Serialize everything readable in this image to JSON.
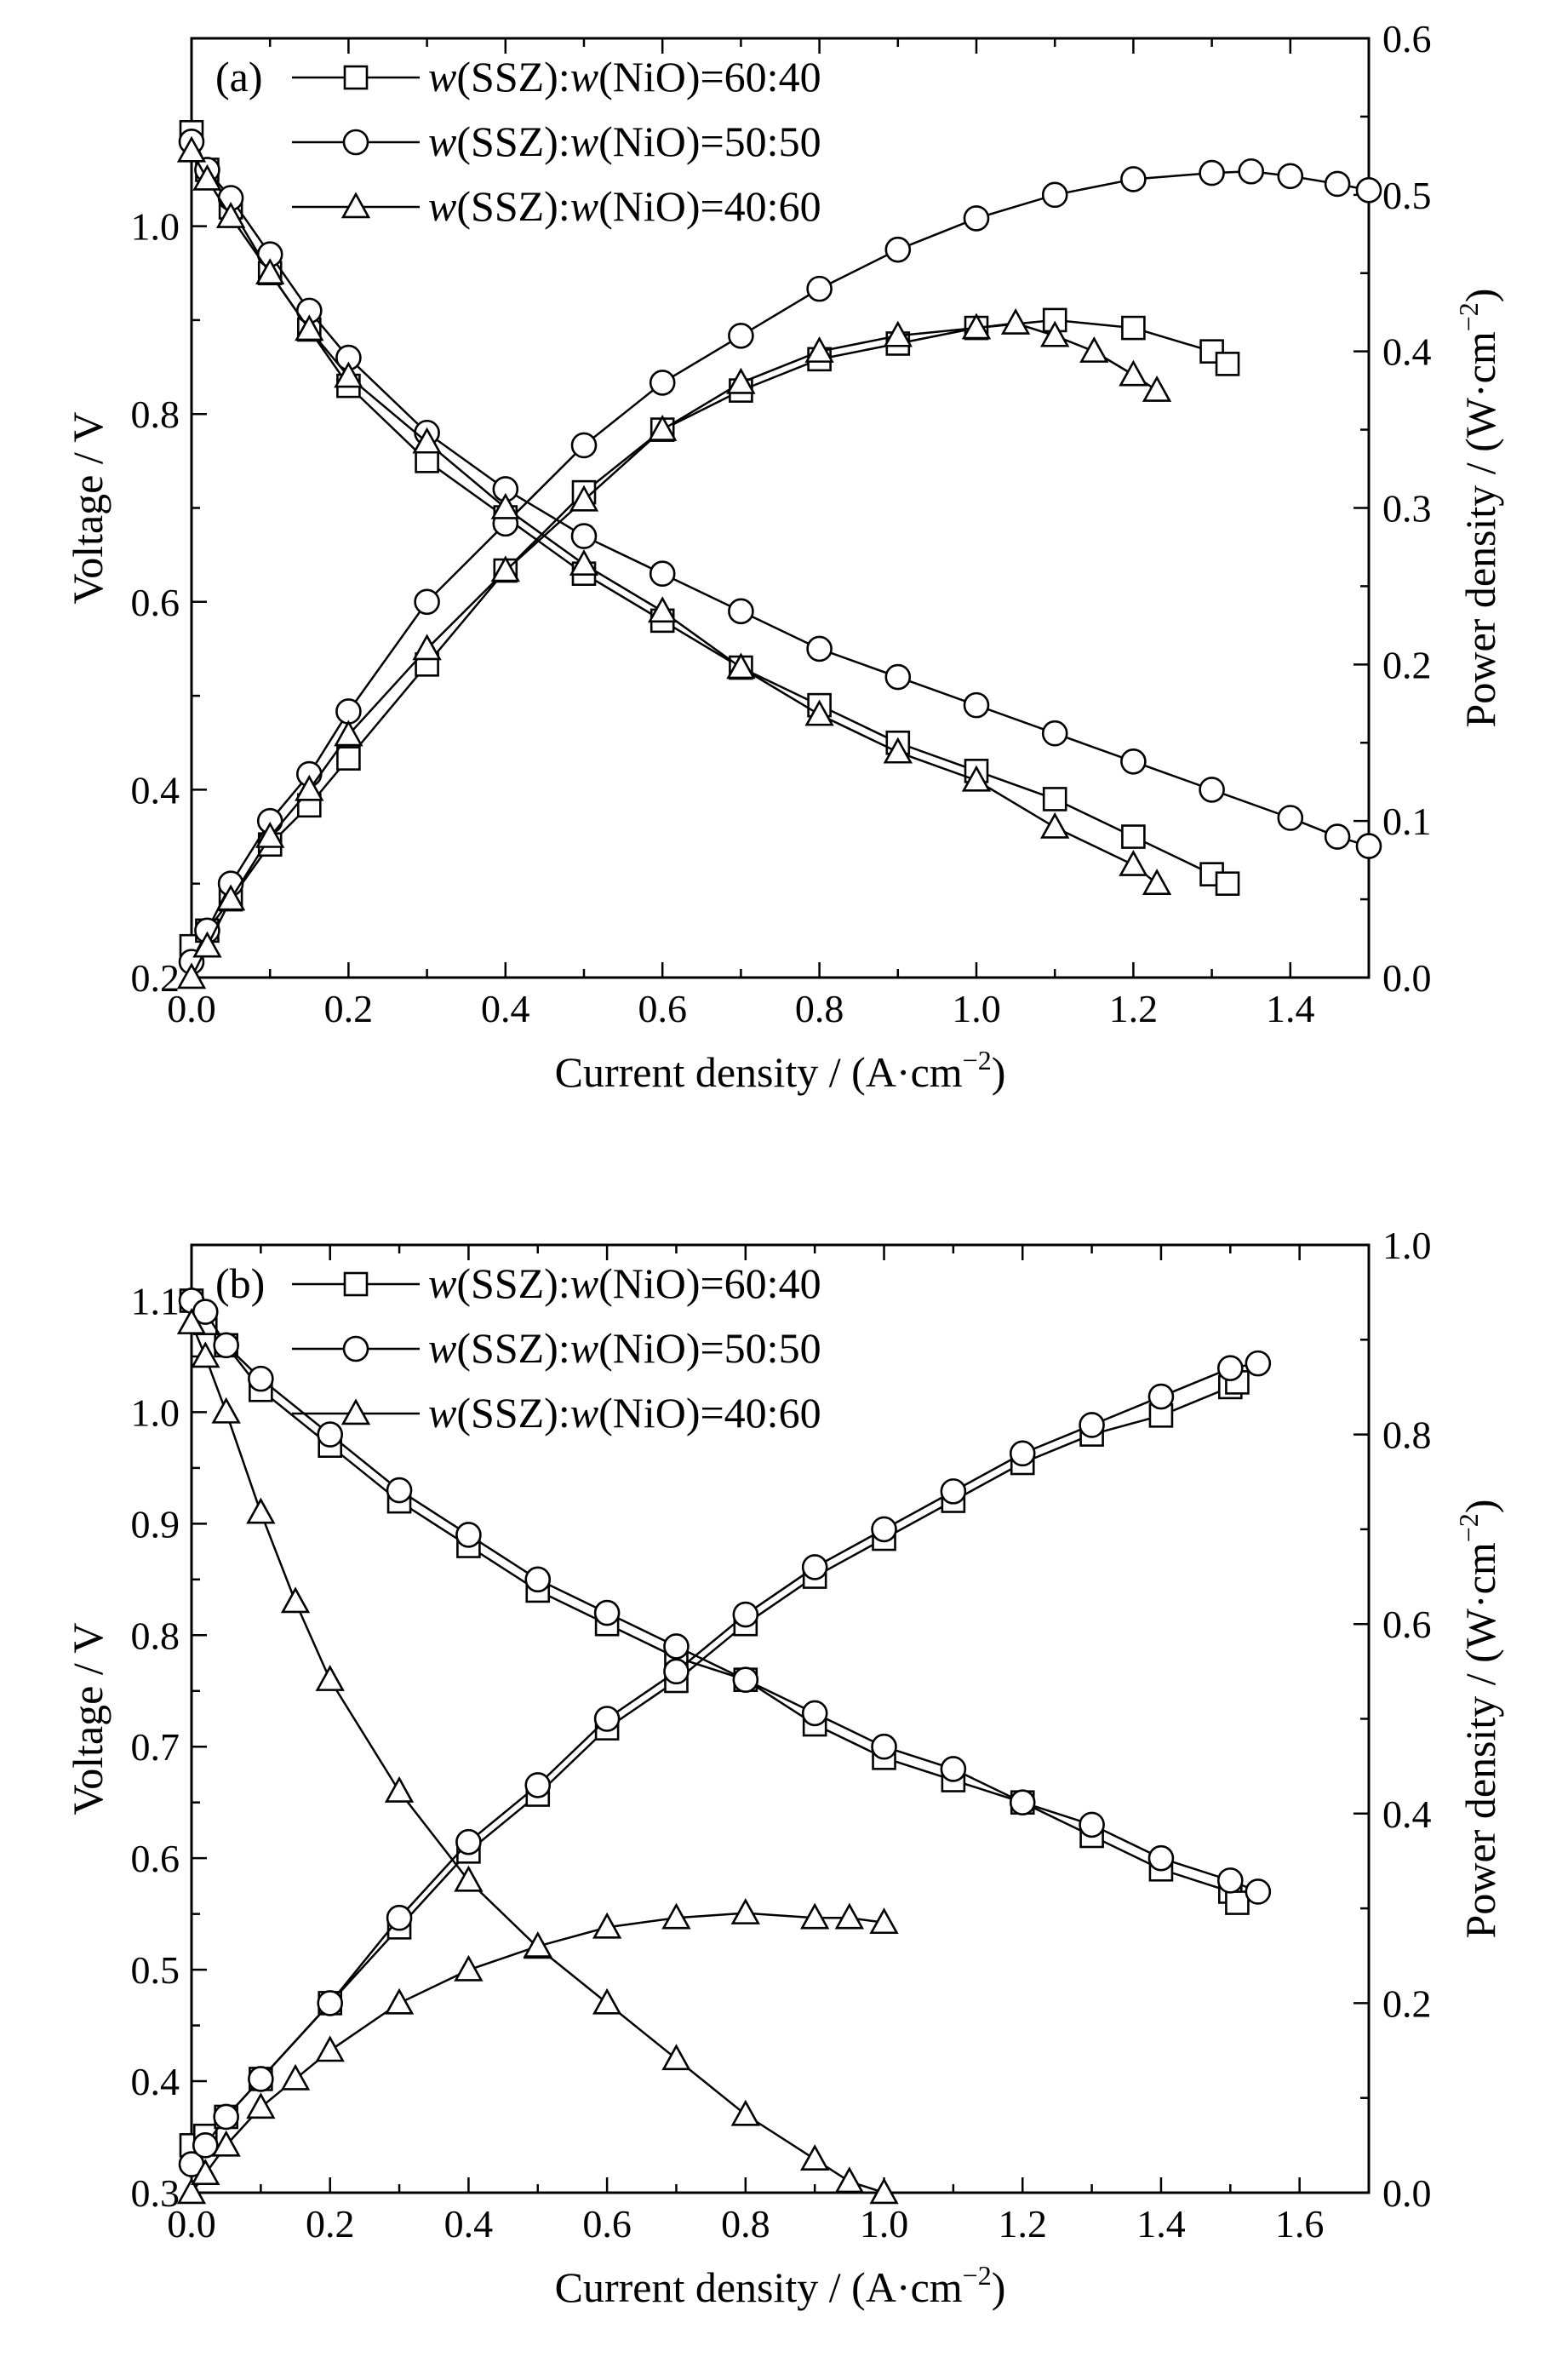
{
  "chart_data": [
    {
      "type": "line",
      "panel_label": "(a)",
      "xlabel": "Current density / (A·cm",
      "xlabel_sup": "−2",
      "xlabel_tail": ")",
      "ylabel_left": "Voltage / V",
      "ylabel_right": "Power density / (W·cm",
      "ylabel_right_sup": "−2",
      "ylabel_right_tail": ")",
      "xlim": [
        0,
        1.5
      ],
      "ylim_left": [
        0.2,
        1.2
      ],
      "ylim_right": [
        0,
        0.6
      ],
      "xticks": [
        0.0,
        0.2,
        0.4,
        0.6,
        0.8,
        1.0,
        1.2,
        1.4
      ],
      "xtick_labels": [
        "0.0",
        "0.2",
        "0.4",
        "0.6",
        "0.8",
        "1.0",
        "1.2",
        "1.4"
      ],
      "yticks_left": [
        0.2,
        0.4,
        0.6,
        0.8,
        1.0
      ],
      "ytick_labels_left": [
        "0.2",
        "0.4",
        "0.6",
        "0.8",
        "1.0"
      ],
      "yticks_right": [
        0.0,
        0.1,
        0.2,
        0.3,
        0.4,
        0.5,
        0.6
      ],
      "ytick_labels_right": [
        "0.0",
        "0.1",
        "0.2",
        "0.3",
        "0.4",
        "0.5",
        "0.6"
      ],
      "legend_position": "top-left",
      "grid": false,
      "series": [
        {
          "name_parts": [
            "w",
            "(SSZ):",
            "w",
            "(NiO)=60:40"
          ],
          "marker": "square",
          "voltage": {
            "x": [
              0.0,
              0.02,
              0.05,
              0.1,
              0.15,
              0.2,
              0.3,
              0.4,
              0.5,
              0.6,
              0.7,
              0.8,
              0.9,
              1.0,
              1.1,
              1.2,
              1.3,
              1.32
            ],
            "y": [
              1.1,
              1.06,
              1.02,
              0.95,
              0.89,
              0.83,
              0.75,
              0.69,
              0.63,
              0.58,
              0.53,
              0.49,
              0.45,
              0.42,
              0.39,
              0.35,
              0.31,
              0.3
            ]
          },
          "power": {
            "x": [
              0.0,
              0.02,
              0.05,
              0.1,
              0.15,
              0.2,
              0.3,
              0.4,
              0.5,
              0.6,
              0.7,
              0.8,
              0.9,
              1.0,
              1.1,
              1.2,
              1.3,
              1.32
            ],
            "y": [
              0.02,
              0.03,
              0.05,
              0.085,
              0.11,
              0.14,
              0.2,
              0.26,
              0.31,
              0.35,
              0.375,
              0.395,
              0.405,
              0.415,
              0.42,
              0.415,
              0.4,
              0.392
            ]
          }
        },
        {
          "name_parts": [
            "w",
            "(SSZ):",
            "w",
            "(NiO)=50:50"
          ],
          "marker": "circle",
          "voltage": {
            "x": [
              0.0,
              0.02,
              0.05,
              0.1,
              0.15,
              0.2,
              0.3,
              0.4,
              0.5,
              0.6,
              0.7,
              0.8,
              0.9,
              1.0,
              1.1,
              1.2,
              1.3,
              1.4,
              1.46,
              1.5
            ],
            "y": [
              1.09,
              1.06,
              1.03,
              0.97,
              0.91,
              0.86,
              0.78,
              0.72,
              0.67,
              0.63,
              0.59,
              0.55,
              0.52,
              0.49,
              0.46,
              0.43,
              0.4,
              0.37,
              0.35,
              0.34
            ]
          },
          "power": {
            "x": [
              0.0,
              0.02,
              0.05,
              0.1,
              0.15,
              0.2,
              0.3,
              0.4,
              0.5,
              0.6,
              0.7,
              0.8,
              0.9,
              1.0,
              1.1,
              1.2,
              1.3,
              1.35,
              1.4,
              1.46,
              1.5
            ],
            "y": [
              0.01,
              0.03,
              0.06,
              0.1,
              0.13,
              0.17,
              0.24,
              0.29,
              0.34,
              0.38,
              0.41,
              0.44,
              0.465,
              0.485,
              0.5,
              0.51,
              0.514,
              0.515,
              0.512,
              0.507,
              0.503
            ]
          }
        },
        {
          "name_parts": [
            "w",
            "(SSZ):",
            "w",
            "(NiO)=40:60"
          ],
          "marker": "triangle",
          "voltage": {
            "x": [
              0.0,
              0.02,
              0.05,
              0.1,
              0.15,
              0.2,
              0.3,
              0.4,
              0.5,
              0.6,
              0.7,
              0.8,
              0.9,
              1.0,
              1.1,
              1.2,
              1.23
            ],
            "y": [
              1.08,
              1.05,
              1.01,
              0.95,
              0.89,
              0.84,
              0.77,
              0.7,
              0.64,
              0.59,
              0.53,
              0.48,
              0.44,
              0.41,
              0.36,
              0.32,
              0.3
            ]
          },
          "power": {
            "x": [
              0.0,
              0.02,
              0.05,
              0.1,
              0.15,
              0.2,
              0.3,
              0.4,
              0.5,
              0.6,
              0.7,
              0.8,
              0.9,
              1.0,
              1.05,
              1.1,
              1.15,
              1.2,
              1.23
            ],
            "y": [
              0.0,
              0.02,
              0.05,
              0.09,
              0.12,
              0.155,
              0.21,
              0.26,
              0.305,
              0.35,
              0.38,
              0.4,
              0.41,
              0.415,
              0.418,
              0.41,
              0.4,
              0.385,
              0.375
            ]
          }
        }
      ]
    },
    {
      "type": "line",
      "panel_label": "(b)",
      "xlabel": "Current density / (A·cm",
      "xlabel_sup": "−2",
      "xlabel_tail": ")",
      "ylabel_left": "Voltage / V",
      "ylabel_right": "Power density / (W·cm",
      "ylabel_right_sup": "−2",
      "ylabel_right_tail": ")",
      "xlim": [
        0,
        1.7
      ],
      "ylim_left": [
        0.3,
        1.15
      ],
      "ylim_right": [
        0,
        1.0
      ],
      "xticks": [
        0.0,
        0.2,
        0.4,
        0.6,
        0.8,
        1.0,
        1.2,
        1.4,
        1.6
      ],
      "xtick_labels": [
        "0.0",
        "0.2",
        "0.4",
        "0.6",
        "0.8",
        "1.0",
        "1.2",
        "1.4",
        "1.6"
      ],
      "yticks_left": [
        0.3,
        0.4,
        0.5,
        0.6,
        0.7,
        0.8,
        0.9,
        1.0,
        1.1
      ],
      "ytick_labels_left": [
        "0.3",
        "0.4",
        "0.5",
        "0.6",
        "0.7",
        "0.8",
        "0.9",
        "1.0",
        "1.1"
      ],
      "yticks_right": [
        0.0,
        0.2,
        0.4,
        0.6,
        0.8,
        1.0
      ],
      "ytick_labels_right": [
        "0.0",
        "0.2",
        "0.4",
        "0.6",
        "0.8",
        "1.0"
      ],
      "legend_position": "top-left",
      "grid": false,
      "series": [
        {
          "name_parts": [
            "w",
            "(SSZ):",
            "w",
            "(NiO)=60:40"
          ],
          "marker": "square",
          "voltage": {
            "x": [
              0.0,
              0.02,
              0.05,
              0.1,
              0.2,
              0.3,
              0.4,
              0.5,
              0.6,
              0.7,
              0.8,
              0.9,
              1.0,
              1.1,
              1.2,
              1.3,
              1.4,
              1.5,
              1.51
            ],
            "y": [
              1.1,
              1.08,
              1.06,
              1.02,
              0.97,
              0.92,
              0.88,
              0.84,
              0.81,
              0.78,
              0.76,
              0.72,
              0.69,
              0.67,
              0.65,
              0.62,
              0.59,
              0.57,
              0.56
            ]
          },
          "power": {
            "x": [
              0.0,
              0.02,
              0.05,
              0.1,
              0.2,
              0.3,
              0.4,
              0.5,
              0.6,
              0.7,
              0.8,
              0.9,
              1.0,
              1.1,
              1.2,
              1.3,
              1.4,
              1.5,
              1.51
            ],
            "y": [
              0.05,
              0.06,
              0.08,
              0.12,
              0.2,
              0.28,
              0.36,
              0.42,
              0.49,
              0.54,
              0.6,
              0.65,
              0.69,
              0.73,
              0.77,
              0.8,
              0.82,
              0.85,
              0.855
            ]
          }
        },
        {
          "name_parts": [
            "w",
            "(SSZ):",
            "w",
            "(NiO)=50:50"
          ],
          "marker": "circle",
          "voltage": {
            "x": [
              0.0,
              0.02,
              0.05,
              0.1,
              0.2,
              0.3,
              0.4,
              0.5,
              0.6,
              0.7,
              0.8,
              0.9,
              1.0,
              1.1,
              1.2,
              1.3,
              1.4,
              1.5,
              1.54
            ],
            "y": [
              1.1,
              1.09,
              1.06,
              1.03,
              0.98,
              0.93,
              0.89,
              0.85,
              0.82,
              0.79,
              0.76,
              0.73,
              0.7,
              0.68,
              0.65,
              0.63,
              0.6,
              0.58,
              0.57
            ]
          },
          "power": {
            "x": [
              0.0,
              0.02,
              0.05,
              0.1,
              0.2,
              0.3,
              0.4,
              0.5,
              0.6,
              0.7,
              0.8,
              0.9,
              1.0,
              1.1,
              1.2,
              1.3,
              1.4,
              1.5,
              1.54
            ],
            "y": [
              0.03,
              0.05,
              0.08,
              0.12,
              0.2,
              0.29,
              0.37,
              0.43,
              0.5,
              0.55,
              0.61,
              0.66,
              0.7,
              0.74,
              0.78,
              0.81,
              0.84,
              0.87,
              0.875
            ]
          }
        },
        {
          "name_parts": [
            "w",
            "(SSZ):",
            "w",
            "(NiO)=40:60"
          ],
          "marker": "triangle",
          "voltage": {
            "x": [
              0.0,
              0.02,
              0.05,
              0.1,
              0.15,
              0.2,
              0.3,
              0.4,
              0.5,
              0.6,
              0.7,
              0.8,
              0.9,
              0.95,
              1.0
            ],
            "y": [
              1.08,
              1.05,
              1.0,
              0.91,
              0.83,
              0.76,
              0.66,
              0.58,
              0.52,
              0.47,
              0.42,
              0.37,
              0.33,
              0.31,
              0.3
            ]
          },
          "power": {
            "x": [
              0.0,
              0.02,
              0.05,
              0.1,
              0.15,
              0.2,
              0.3,
              0.4,
              0.5,
              0.6,
              0.7,
              0.8,
              0.9,
              0.95,
              1.0
            ],
            "y": [
              0.0,
              0.02,
              0.05,
              0.09,
              0.12,
              0.15,
              0.2,
              0.235,
              0.26,
              0.28,
              0.29,
              0.295,
              0.29,
              0.29,
              0.285
            ]
          }
        }
      ]
    }
  ]
}
